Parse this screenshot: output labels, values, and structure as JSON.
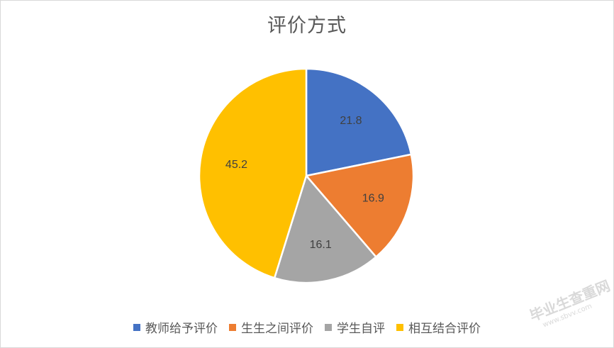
{
  "chart_data": {
    "type": "pie",
    "title": "评价方式",
    "categories": [
      "教师给予评价",
      "生生之间评价",
      "学生自评",
      "相互结合评价"
    ],
    "values": [
      21.8,
      16.9,
      16.1,
      45.2
    ],
    "colors": [
      "#4472c4",
      "#ed7d31",
      "#a5a5a5",
      "#ffc000"
    ],
    "start_angle_deg": 0,
    "direction": "clockwise",
    "data_labels": true,
    "legend_position": "bottom"
  },
  "watermark": {
    "text": "毕业生查重网",
    "sub": "www.sbvv.com"
  }
}
